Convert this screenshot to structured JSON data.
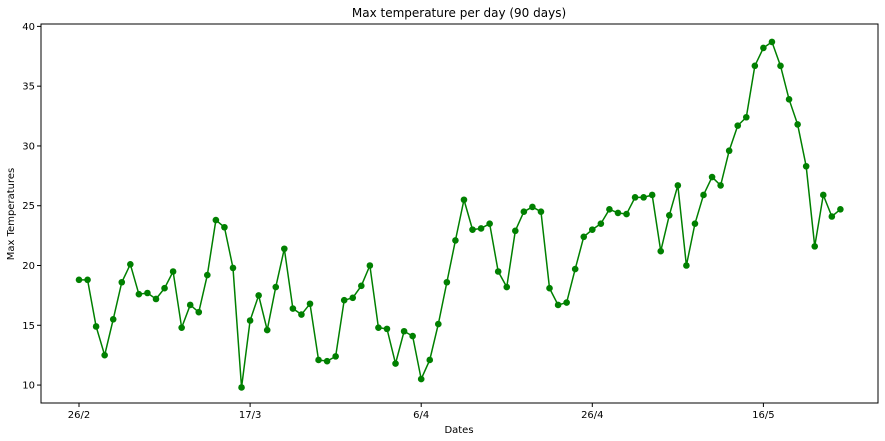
{
  "colors": {
    "series": "#008000",
    "axis": "#000000",
    "background": "#ffffff"
  },
  "chart_data": {
    "type": "line",
    "title": "Max temperature per day (90 days)",
    "xlabel": "Dates",
    "ylabel": "Max Temperatures",
    "ylim": [
      8.5,
      40.2
    ],
    "yticks": [
      10,
      15,
      20,
      25,
      30,
      35,
      40
    ],
    "xticks": [
      "26/2",
      "17/3",
      "6/4",
      "26/4",
      "16/5"
    ],
    "grid": false,
    "legend": "none",
    "marker": "circle",
    "x": [
      "26/2",
      "27/2",
      "28/2",
      "29/2",
      "1/3",
      "2/3",
      "3/3",
      "4/3",
      "5/3",
      "6/3",
      "7/3",
      "8/3",
      "9/3",
      "10/3",
      "11/3",
      "12/3",
      "13/3",
      "14/3",
      "15/3",
      "16/3",
      "17/3",
      "18/3",
      "19/3",
      "20/3",
      "21/3",
      "22/3",
      "23/3",
      "24/3",
      "25/3",
      "26/3",
      "27/3",
      "28/3",
      "29/3",
      "30/3",
      "31/3",
      "1/4",
      "2/4",
      "3/4",
      "4/4",
      "5/4",
      "6/4",
      "7/4",
      "8/4",
      "9/4",
      "10/4",
      "11/4",
      "12/4",
      "13/4",
      "14/4",
      "15/4",
      "16/4",
      "17/4",
      "18/4",
      "19/4",
      "20/4",
      "21/4",
      "22/4",
      "23/4",
      "24/4",
      "25/4",
      "26/4",
      "27/4",
      "28/4",
      "29/4",
      "30/4",
      "1/5",
      "2/5",
      "3/5",
      "4/5",
      "5/5",
      "6/5",
      "7/5",
      "8/5",
      "9/5",
      "10/5",
      "11/5",
      "12/5",
      "13/5",
      "14/5",
      "15/5",
      "16/5",
      "17/5",
      "18/5",
      "19/5",
      "20/5",
      "21/5",
      "22/5",
      "23/5",
      "24/5",
      "25/5"
    ],
    "series": [
      {
        "values": [
          18.8,
          18.8,
          14.9,
          12.5,
          15.5,
          18.6,
          20.1,
          17.6,
          17.7,
          17.2,
          18.1,
          19.5,
          14.8,
          16.7,
          16.1,
          19.2,
          23.8,
          23.2,
          19.8,
          9.8,
          15.4,
          17.5,
          14.6,
          18.2,
          21.4,
          16.4,
          15.9,
          16.8,
          12.1,
          12.0,
          12.4,
          17.1,
          17.3,
          18.3,
          20.0,
          14.8,
          14.7,
          11.8,
          14.5,
          14.1,
          10.5,
          12.1,
          15.1,
          18.6,
          22.1,
          25.5,
          23.0,
          23.1,
          23.5,
          19.5,
          18.2,
          22.9,
          24.5,
          24.9,
          24.5,
          18.1,
          16.7,
          16.9,
          19.7,
          22.4,
          23.0,
          23.5,
          24.7,
          24.4,
          24.3,
          25.7,
          25.7,
          25.9,
          21.2,
          24.2,
          26.7,
          20.0,
          23.5,
          25.9,
          27.4,
          26.7,
          29.6,
          31.7,
          32.4,
          36.7,
          38.2,
          38.7,
          36.7,
          33.9,
          31.8,
          28.3,
          21.6,
          25.9,
          24.1,
          24.7
        ]
      }
    ]
  }
}
